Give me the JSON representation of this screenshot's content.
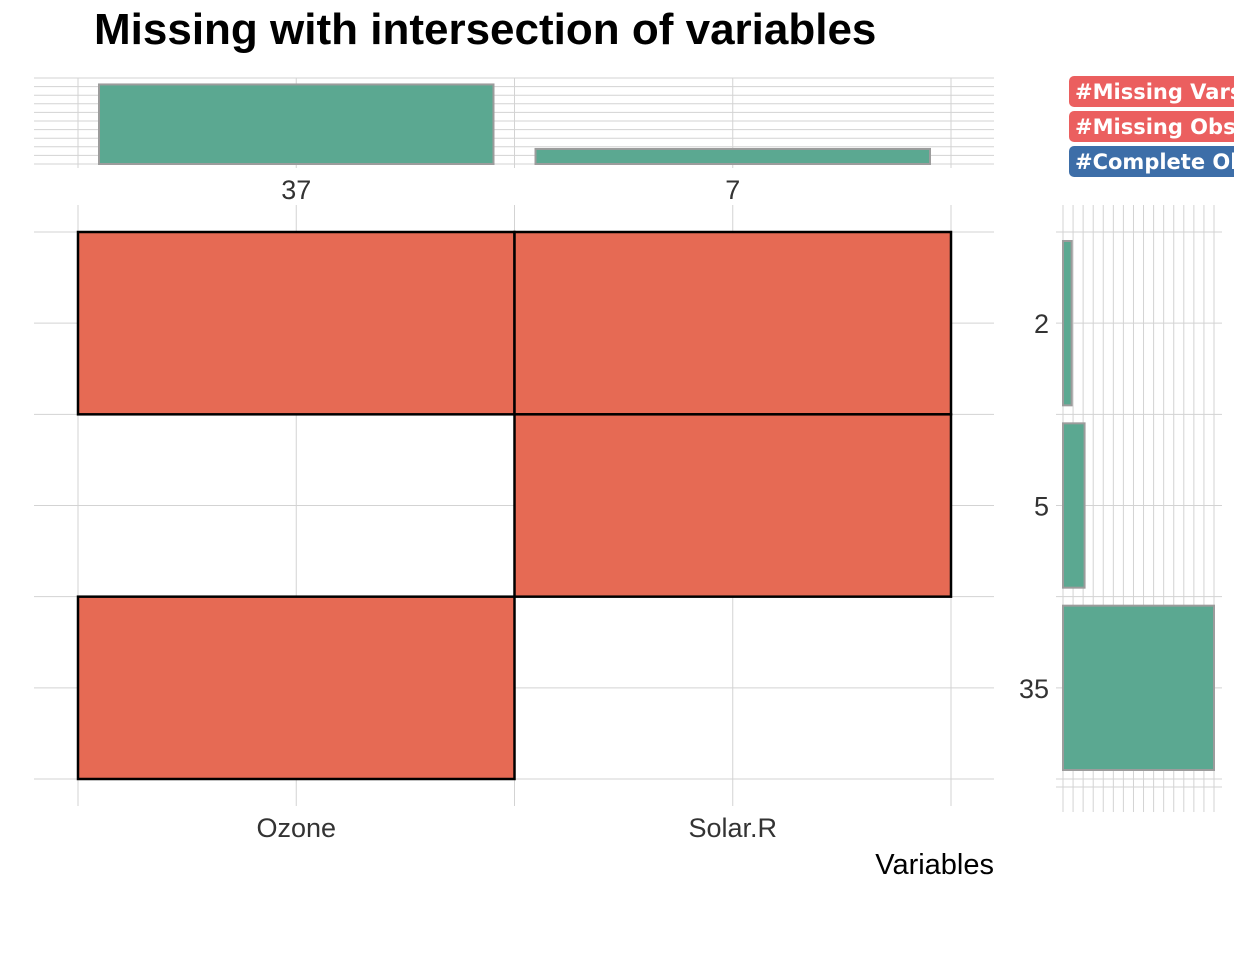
{
  "chart_data": {
    "type": "heatmap",
    "title": "Missing with intersection of variables",
    "xlabel": "Variables",
    "variables": [
      "Ozone",
      "Solar.R"
    ],
    "variable_missing_counts": [
      37,
      7
    ],
    "intersection_counts": [
      2,
      5,
      35
    ],
    "matrix": [
      [
        1,
        1
      ],
      [
        0,
        1
      ],
      [
        1,
        0
      ]
    ],
    "colors": {
      "missing": "#e66a54",
      "bar": "#5ba891",
      "bar_border": "#9c9c9c",
      "badge_missing": "#eb5f5f",
      "badge_complete": "#3d6ea8"
    }
  },
  "badges": [
    {
      "label": "#Missing Vars:"
    },
    {
      "label": "#Missing Obs:"
    },
    {
      "label": "#Complete Obs"
    }
  ]
}
